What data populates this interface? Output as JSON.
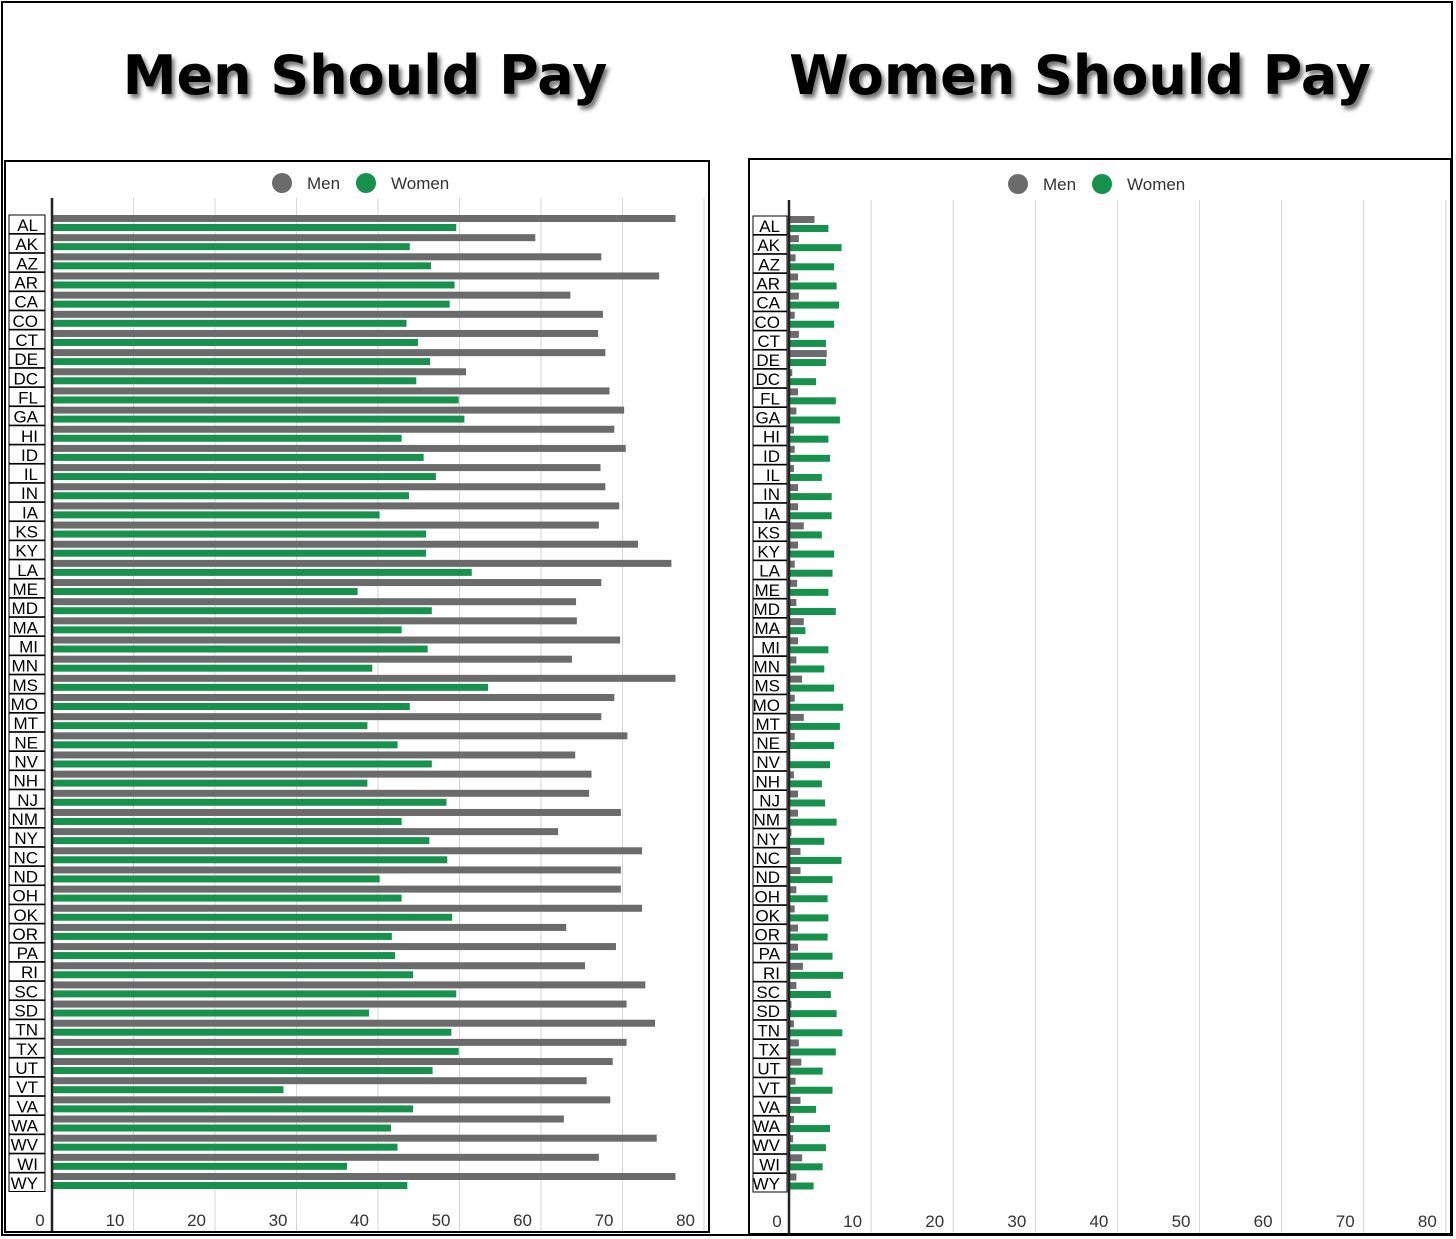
{
  "colors": {
    "men": "#6b6b6b",
    "women": "#17924d",
    "grid": "#d6d6d6"
  },
  "chart_data": [
    {
      "type": "bar",
      "title": "Men Should Pay",
      "legend": [
        "Men",
        "Women"
      ],
      "legend_position": "top",
      "xlim": [
        0,
        80
      ],
      "x_ticks": [
        0,
        10,
        20,
        30,
        40,
        50,
        60,
        70,
        80
      ],
      "grid": true,
      "categories": [
        "AL",
        "AK",
        "AZ",
        "AR",
        "CA",
        "CO",
        "CT",
        "DE",
        "DC",
        "FL",
        "GA",
        "HI",
        "ID",
        "IL",
        "IN",
        "IA",
        "KS",
        "KY",
        "LA",
        "ME",
        "MD",
        "MA",
        "MI",
        "MN",
        "MS",
        "MO",
        "MT",
        "NE",
        "NV",
        "NH",
        "NJ",
        "NM",
        "NY",
        "NC",
        "ND",
        "OH",
        "OK",
        "OR",
        "PA",
        "RI",
        "SC",
        "SD",
        "TN",
        "TX",
        "UT",
        "VT",
        "VA",
        "WA",
        "WV",
        "WI",
        "WY"
      ],
      "series": [
        {
          "name": "Men",
          "values": [
            76.5,
            59.3,
            67.4,
            74.5,
            63.6,
            67.6,
            67,
            67.9,
            50.8,
            68.4,
            70.2,
            69,
            70.4,
            67.3,
            67.9,
            69.6,
            67.1,
            71.9,
            76,
            67.4,
            64.3,
            64.4,
            69.7,
            63.8,
            76.5,
            69,
            67.4,
            70.6,
            64.2,
            66.2,
            65.9,
            69.8,
            62.1,
            72.4,
            69.8,
            69.8,
            72.4,
            63.1,
            69.2,
            65.4,
            72.8,
            70.5,
            74,
            70.5,
            68.8,
            65.6,
            68.5,
            62.8,
            74.2,
            67.1,
            76.5
          ]
        },
        {
          "name": "Women",
          "values": [
            49.6,
            43.9,
            46.5,
            49.4,
            48.8,
            43.5,
            44.9,
            46.4,
            44.7,
            49.9,
            50.6,
            42.9,
            45.6,
            47.1,
            43.8,
            40.2,
            45.9,
            45.9,
            51.5,
            37.5,
            46.6,
            42.9,
            46.1,
            39.3,
            53.5,
            43.9,
            38.7,
            42.4,
            46.6,
            38.7,
            48.4,
            42.9,
            46.3,
            48.5,
            40.2,
            42.9,
            49.1,
            41.7,
            42.1,
            44.3,
            49.6,
            38.9,
            49,
            49.9,
            46.7,
            28.4,
            44.3,
            41.6,
            42.4,
            36.2,
            43.6
          ]
        }
      ]
    },
    {
      "type": "bar",
      "title": "Women Should Pay",
      "legend": [
        "Men",
        "Women"
      ],
      "legend_position": "top",
      "xlim": [
        0,
        80
      ],
      "x_ticks": [
        0,
        10,
        20,
        30,
        40,
        50,
        60,
        70,
        80
      ],
      "grid": true,
      "categories": [
        "AL",
        "AK",
        "AZ",
        "AR",
        "CA",
        "CO",
        "CT",
        "DE",
        "DC",
        "FL",
        "GA",
        "HI",
        "ID",
        "IL",
        "IN",
        "IA",
        "KS",
        "KY",
        "LA",
        "ME",
        "MD",
        "MA",
        "MI",
        "MN",
        "MS",
        "MO",
        "MT",
        "NE",
        "NV",
        "NH",
        "NJ",
        "NM",
        "NY",
        "NC",
        "ND",
        "OH",
        "OK",
        "OR",
        "PA",
        "RI",
        "SC",
        "SD",
        "TN",
        "TX",
        "UT",
        "VT",
        "VA",
        "WA",
        "WV",
        "WI",
        "WY"
      ],
      "series": [
        {
          "name": "Men",
          "values": [
            3.1,
            1.2,
            0.8,
            1.1,
            1.2,
            0.7,
            1.2,
            4.6,
            0.4,
            1.1,
            0.9,
            0.6,
            0.7,
            0.6,
            1.1,
            1.1,
            1.8,
            1.1,
            0.7,
            1,
            0.9,
            1.8,
            1.1,
            0.9,
            1.6,
            0.7,
            1.8,
            0.7,
            0,
            0.6,
            1.1,
            1.1,
            0.3,
            1.4,
            1.4,
            0.9,
            0.7,
            1.1,
            1.1,
            1.7,
            0.9,
            0.3,
            0.6,
            1.2,
            1.5,
            0.8,
            1.4,
            0.6,
            0.5,
            1.6,
            0.9
          ]
        },
        {
          "name": "Women",
          "values": [
            4.8,
            6.4,
            5.5,
            5.8,
            6.1,
            5.5,
            4.5,
            4.5,
            3.3,
            5.7,
            6.2,
            4.8,
            5,
            4,
            5.2,
            5.2,
            4,
            5.5,
            5.3,
            4.8,
            5.7,
            2,
            4.8,
            4.3,
            5.5,
            6.6,
            6.2,
            5.5,
            5,
            4,
            4.4,
            5.8,
            4.3,
            6.4,
            5.3,
            4.7,
            4.8,
            4.7,
            5.3,
            6.6,
            5.1,
            5.8,
            6.5,
            5.7,
            4.1,
            5.3,
            3.3,
            5,
            4.5,
            4.1,
            3
          ]
        }
      ]
    }
  ]
}
